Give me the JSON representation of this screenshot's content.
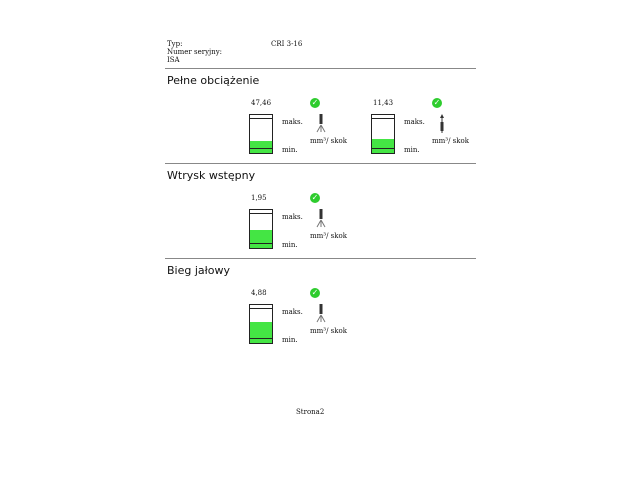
{
  "header": {
    "typ_label": "Typ:",
    "typ_value": "CRI 3-16",
    "serial_label": "Numer seryjny:",
    "isa_label": "ISA"
  },
  "colors": {
    "fill": "#44e544",
    "check": "#2ecc2e"
  },
  "sections": [
    {
      "title": "Pełne obciążenie",
      "gauges": [
        {
          "value": "47,46",
          "fill": 0.3,
          "max_label": "maks.",
          "min_label": "min.",
          "unit": "mm³/ skok",
          "status": "ok",
          "icon": "injector-spray-icon"
        },
        {
          "value": "11,43",
          "fill": 0.35,
          "max_label": "maks.",
          "min_label": "min.",
          "unit": "mm³/ skok",
          "status": "ok",
          "icon": "injector-return-icon"
        }
      ]
    },
    {
      "title": "Wtrysk wstępny",
      "gauges": [
        {
          "value": "1,95",
          "fill": 0.45,
          "max_label": "maks.",
          "min_label": "min.",
          "unit": "mm³/ skok",
          "status": "ok",
          "icon": "injector-spray-icon"
        }
      ]
    },
    {
      "title": "Bieg jałowy",
      "gauges": [
        {
          "value": "4,88",
          "fill": 0.55,
          "max_label": "maks.",
          "min_label": "min.",
          "unit": "mm³/ skok",
          "status": "ok",
          "icon": "injector-spray-icon"
        }
      ]
    }
  ],
  "footer": {
    "page": "Strona2"
  }
}
